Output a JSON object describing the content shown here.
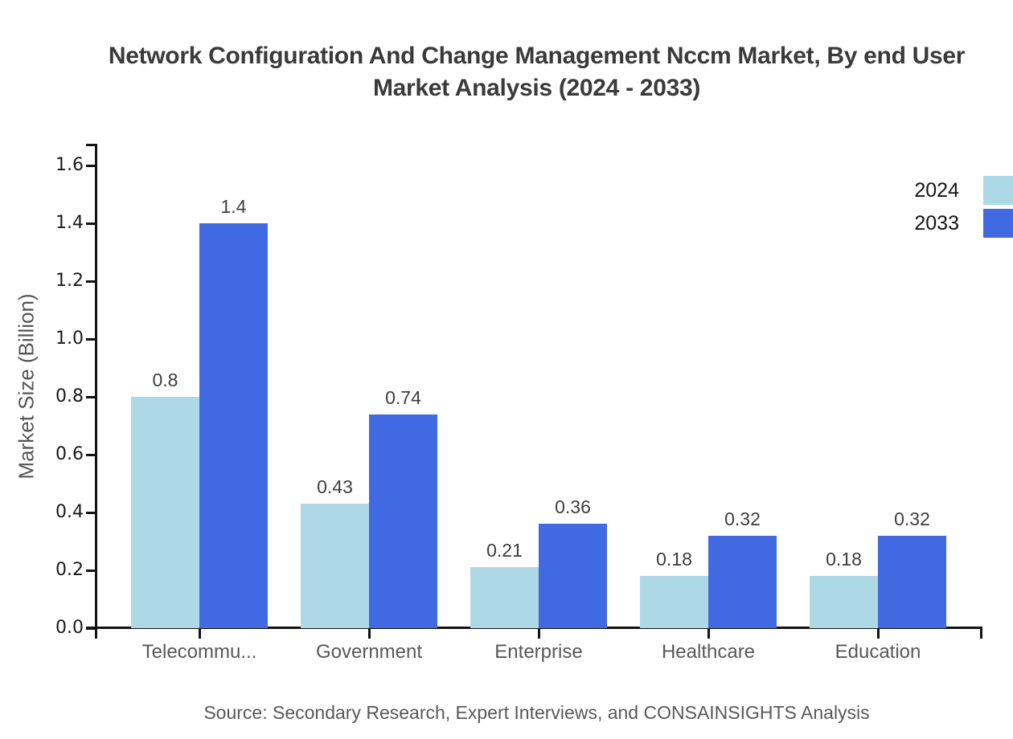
{
  "title": {
    "line1": "Network Configuration And Change Management Nccm Market, By end User",
    "line2": "Market Analysis (2024 - 2033)"
  },
  "source_note": "Source: Secondary Research, Expert Interviews, and CONSAINSIGHTS Analysis",
  "chart_data": {
    "type": "bar",
    "title": "Network Configuration And Change Management Nccm Market, By end User Market Analysis (2024 - 2033)",
    "categories": [
      "Telecommu...",
      "Government",
      "Enterprise",
      "Healthcare",
      "Education"
    ],
    "series": [
      {
        "name": "2024",
        "color": "#ADD8E6",
        "values": [
          0.8,
          0.43,
          0.21,
          0.18,
          0.18
        ]
      },
      {
        "name": "2033",
        "color": "#4169E1",
        "values": [
          1.4,
          0.74,
          0.36,
          0.32,
          0.32
        ]
      }
    ],
    "xlabel": "",
    "ylabel": "Market Size (Billion)",
    "ylim": [
      0,
      1.6
    ],
    "yticks": [
      0.0,
      0.2,
      0.4,
      0.6,
      0.8,
      1.0,
      1.2,
      1.4,
      1.6
    ],
    "grid": false,
    "legend_position": "top-right",
    "bar_value_labels": true,
    "axis_color": "#111111"
  }
}
